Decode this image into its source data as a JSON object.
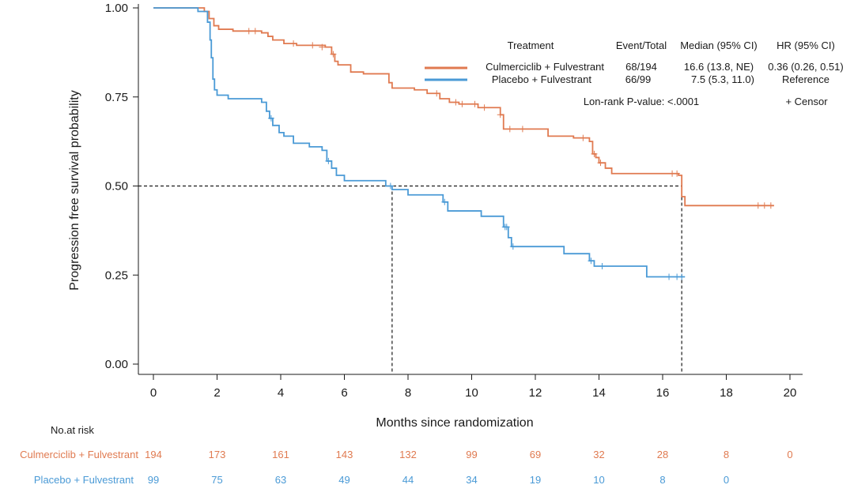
{
  "chart_data": {
    "type": "line",
    "title": "",
    "xlabel": "Months since randomization",
    "ylabel": "Progression free survival probability",
    "xlim": [
      0,
      20
    ],
    "ylim": [
      0,
      1
    ],
    "x_ticks": [
      "0",
      "2",
      "4",
      "6",
      "8",
      "10",
      "12",
      "14",
      "16",
      "18",
      "20"
    ],
    "y_ticks": [
      "0.00",
      "0.25",
      "0.50",
      "0.75",
      "1.00"
    ],
    "median_reference": {
      "y": 0.5,
      "medians_x": [
        7.5,
        16.6
      ]
    },
    "series": [
      {
        "name": "Culmerciclib + Fulvestrant",
        "color": "#e07a50",
        "steps": [
          [
            0,
            1.0
          ],
          [
            1.6,
            0.99
          ],
          [
            1.75,
            0.97
          ],
          [
            1.9,
            0.95
          ],
          [
            2.05,
            0.94
          ],
          [
            2.5,
            0.935
          ],
          [
            3.4,
            0.93
          ],
          [
            3.6,
            0.92
          ],
          [
            3.75,
            0.91
          ],
          [
            4.1,
            0.9
          ],
          [
            4.5,
            0.895
          ],
          [
            5.4,
            0.89
          ],
          [
            5.6,
            0.87
          ],
          [
            5.7,
            0.85
          ],
          [
            5.8,
            0.84
          ],
          [
            6.2,
            0.82
          ],
          [
            6.6,
            0.815
          ],
          [
            7.4,
            0.79
          ],
          [
            7.5,
            0.775
          ],
          [
            8.2,
            0.77
          ],
          [
            8.6,
            0.76
          ],
          [
            9.0,
            0.745
          ],
          [
            9.3,
            0.735
          ],
          [
            9.6,
            0.73
          ],
          [
            10.2,
            0.72
          ],
          [
            10.9,
            0.7
          ],
          [
            11.0,
            0.66
          ],
          [
            12.4,
            0.64
          ],
          [
            13.2,
            0.635
          ],
          [
            13.7,
            0.625
          ],
          [
            13.8,
            0.59
          ],
          [
            13.9,
            0.58
          ],
          [
            14.0,
            0.565
          ],
          [
            14.2,
            0.55
          ],
          [
            14.4,
            0.535
          ],
          [
            16.5,
            0.53
          ],
          [
            16.6,
            0.47
          ],
          [
            16.7,
            0.445
          ]
        ],
        "end_x": 19.5,
        "censors": [
          [
            3.0,
            0.935
          ],
          [
            3.2,
            0.935
          ],
          [
            4.4,
            0.9
          ],
          [
            5.0,
            0.895
          ],
          [
            5.3,
            0.89
          ],
          [
            5.65,
            0.87
          ],
          [
            8.9,
            0.76
          ],
          [
            9.5,
            0.735
          ],
          [
            9.7,
            0.73
          ],
          [
            10.1,
            0.73
          ],
          [
            10.4,
            0.72
          ],
          [
            10.9,
            0.7
          ],
          [
            11.2,
            0.66
          ],
          [
            11.6,
            0.66
          ],
          [
            13.5,
            0.635
          ],
          [
            13.85,
            0.59
          ],
          [
            14.05,
            0.565
          ],
          [
            16.3,
            0.535
          ],
          [
            16.45,
            0.535
          ],
          [
            19.0,
            0.445
          ],
          [
            19.2,
            0.445
          ],
          [
            19.4,
            0.445
          ]
        ]
      },
      {
        "name": "Placebo + Fulvestrant",
        "color": "#4a9ad6",
        "steps": [
          [
            0,
            1.0
          ],
          [
            1.4,
            0.99
          ],
          [
            1.7,
            0.96
          ],
          [
            1.78,
            0.91
          ],
          [
            1.82,
            0.86
          ],
          [
            1.87,
            0.8
          ],
          [
            1.92,
            0.77
          ],
          [
            2.0,
            0.755
          ],
          [
            2.35,
            0.745
          ],
          [
            3.4,
            0.735
          ],
          [
            3.55,
            0.71
          ],
          [
            3.65,
            0.69
          ],
          [
            3.75,
            0.67
          ],
          [
            3.95,
            0.65
          ],
          [
            4.1,
            0.64
          ],
          [
            4.4,
            0.62
          ],
          [
            4.9,
            0.61
          ],
          [
            5.3,
            0.6
          ],
          [
            5.45,
            0.57
          ],
          [
            5.6,
            0.55
          ],
          [
            5.75,
            0.53
          ],
          [
            6.0,
            0.515
          ],
          [
            7.3,
            0.5
          ],
          [
            7.5,
            0.49
          ],
          [
            8.0,
            0.475
          ],
          [
            9.1,
            0.455
          ],
          [
            9.25,
            0.43
          ],
          [
            10.3,
            0.415
          ],
          [
            11.0,
            0.385
          ],
          [
            11.15,
            0.355
          ],
          [
            11.25,
            0.33
          ],
          [
            12.9,
            0.31
          ],
          [
            13.7,
            0.29
          ],
          [
            13.85,
            0.275
          ],
          [
            15.5,
            0.245
          ]
        ],
        "end_x": 16.7,
        "censors": [
          [
            3.7,
            0.69
          ],
          [
            5.5,
            0.57
          ],
          [
            7.45,
            0.5
          ],
          [
            9.15,
            0.455
          ],
          [
            11.05,
            0.385
          ],
          [
            11.1,
            0.385
          ],
          [
            11.3,
            0.33
          ],
          [
            13.75,
            0.29
          ],
          [
            14.1,
            0.275
          ],
          [
            16.2,
            0.245
          ],
          [
            16.45,
            0.245
          ],
          [
            16.6,
            0.245
          ]
        ]
      }
    ],
    "legend": {
      "position": "top-right",
      "headers": {
        "treatment": "Treatment",
        "event_total": "Event/Total",
        "median": "Median (95% CI)",
        "hr": "HR (95% CI)"
      },
      "rows": [
        {
          "name": "Culmerciclib + Fulvestrant",
          "event_total": "68/194",
          "median": "16.6 (13.8, NE)",
          "hr": "0.36 (0.26, 0.51)"
        },
        {
          "name": "Placebo + Fulvestrant",
          "event_total": "66/99",
          "median": "7.5 (5.3, 11.0)",
          "hr": "Reference"
        }
      ],
      "pvalue": "Lon-rank P-value: <.0001",
      "censor_note": "+ Censor"
    },
    "risk_table": {
      "title": "No.at risk",
      "rows": [
        {
          "name": "Culmerciclib + Fulvestrant",
          "values": [
            "194",
            "173",
            "161",
            "143",
            "132",
            "99",
            "69",
            "32",
            "28",
            "8",
            "0"
          ]
        },
        {
          "name": "Placebo + Fulvestrant",
          "values": [
            "99",
            "75",
            "63",
            "49",
            "44",
            "34",
            "19",
            "10",
            "8",
            "0"
          ]
        }
      ]
    }
  }
}
